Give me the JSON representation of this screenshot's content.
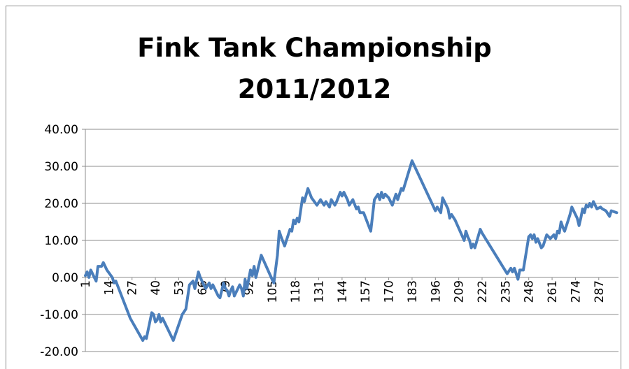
{
  "chart_data": {
    "type": "line",
    "title_lines": [
      "Fink Tank Championship",
      "2011/2012"
    ],
    "xlabel": "",
    "ylabel": "",
    "ylim": [
      -20,
      40
    ],
    "y_ticks": [
      -20,
      -10,
      0,
      10,
      20,
      30,
      40
    ],
    "y_tick_labels": [
      "-20.00",
      "-10.00",
      "0.00",
      "10.00",
      "20.00",
      "30.00",
      "40.00"
    ],
    "x_tick_labels": [
      "1",
      "14",
      "27",
      "40",
      "53",
      "66",
      "79",
      "92",
      "105",
      "118",
      "131",
      "144",
      "157",
      "170",
      "183",
      "196",
      "209",
      "222",
      "235",
      "248",
      "261",
      "274",
      "287"
    ],
    "xlim": [
      1,
      298
    ],
    "grid": true,
    "legend": "none",
    "line_color": "#4a7ebb",
    "points": [
      [
        1,
        0.5
      ],
      [
        2,
        1.5
      ],
      [
        3,
        0
      ],
      [
        4,
        2
      ],
      [
        6,
        0
      ],
      [
        7,
        -1
      ],
      [
        8,
        3
      ],
      [
        10,
        3
      ],
      [
        11,
        4
      ],
      [
        13,
        2
      ],
      [
        16,
        0
      ],
      [
        17,
        -1.5
      ],
      [
        18,
        -1
      ],
      [
        26,
        -11
      ],
      [
        33,
        -17
      ],
      [
        34,
        -16
      ],
      [
        35,
        -16.5
      ],
      [
        38,
        -9.5
      ],
      [
        39,
        -10
      ],
      [
        40,
        -12
      ],
      [
        41,
        -11.5
      ],
      [
        42,
        -10
      ],
      [
        43,
        -12
      ],
      [
        44,
        -11
      ],
      [
        50,
        -17
      ],
      [
        55,
        -10
      ],
      [
        57,
        -8.5
      ],
      [
        59,
        -2
      ],
      [
        61,
        -1
      ],
      [
        62,
        -3
      ],
      [
        64,
        1.5
      ],
      [
        65,
        0
      ],
      [
        67,
        -2
      ],
      [
        68,
        -3
      ],
      [
        70,
        -1.5
      ],
      [
        71,
        -3
      ],
      [
        72,
        -2
      ],
      [
        75,
        -5
      ],
      [
        76,
        -5.5
      ],
      [
        78,
        -1.5
      ],
      [
        79,
        -3
      ],
      [
        80,
        -3.5
      ],
      [
        81,
        -5
      ],
      [
        82,
        -3.5
      ],
      [
        83,
        -2.5
      ],
      [
        84,
        -5
      ],
      [
        87,
        -2
      ],
      [
        88,
        -3
      ],
      [
        89,
        -5
      ],
      [
        90,
        -0.5
      ],
      [
        91,
        -3
      ],
      [
        93,
        2
      ],
      [
        94,
        0.5
      ],
      [
        95,
        3
      ],
      [
        96,
        0
      ],
      [
        99,
        6
      ],
      [
        105,
        -0.5
      ],
      [
        106,
        -1.5
      ],
      [
        108,
        6
      ],
      [
        109,
        12.5
      ],
      [
        110,
        11
      ],
      [
        112,
        8.5
      ],
      [
        115,
        13
      ],
      [
        116,
        12.5
      ],
      [
        117,
        15.5
      ],
      [
        118,
        14.5
      ],
      [
        119,
        16
      ],
      [
        120,
        15
      ],
      [
        122,
        21.5
      ],
      [
        123,
        20.5
      ],
      [
        125,
        24
      ],
      [
        127,
        21.5
      ],
      [
        130,
        19.5
      ],
      [
        132,
        21
      ],
      [
        134,
        19.5
      ],
      [
        135,
        20.5
      ],
      [
        137,
        19
      ],
      [
        138,
        21
      ],
      [
        140,
        19.5
      ],
      [
        141,
        20.5
      ],
      [
        143,
        23
      ],
      [
        144,
        22
      ],
      [
        145,
        23
      ],
      [
        147,
        21
      ],
      [
        148,
        19.5
      ],
      [
        150,
        21
      ],
      [
        152,
        18.5
      ],
      [
        153,
        19
      ],
      [
        154,
        17.5
      ],
      [
        156,
        17.5
      ],
      [
        160,
        12.5
      ],
      [
        162,
        21
      ],
      [
        164,
        22.5
      ],
      [
        165,
        21
      ],
      [
        166,
        23
      ],
      [
        167,
        21.5
      ],
      [
        168,
        22.5
      ],
      [
        170,
        21.5
      ],
      [
        172,
        19.5
      ],
      [
        174,
        22.5
      ],
      [
        175,
        21
      ],
      [
        177,
        24
      ],
      [
        178,
        23.5
      ],
      [
        183,
        31.5
      ],
      [
        196,
        18
      ],
      [
        197,
        19
      ],
      [
        199,
        17.5
      ],
      [
        200,
        21.5
      ],
      [
        203,
        18.5
      ],
      [
        204,
        16
      ],
      [
        205,
        17
      ],
      [
        207,
        15.5
      ],
      [
        212,
        10
      ],
      [
        213,
        12.5
      ],
      [
        214,
        11
      ],
      [
        215,
        10
      ],
      [
        216,
        8
      ],
      [
        217,
        9
      ],
      [
        218,
        8
      ],
      [
        221,
        13
      ],
      [
        222,
        12
      ],
      [
        236,
        1
      ],
      [
        238,
        2.5
      ],
      [
        239,
        1.5
      ],
      [
        240,
        2.5
      ],
      [
        242,
        -0.5
      ],
      [
        243,
        2
      ],
      [
        245,
        2
      ],
      [
        248,
        11
      ],
      [
        249,
        11.5
      ],
      [
        250,
        10.5
      ],
      [
        251,
        11.5
      ],
      [
        252,
        9.5
      ],
      [
        253,
        10.5
      ],
      [
        255,
        8
      ],
      [
        256,
        8.5
      ],
      [
        258,
        11.5
      ],
      [
        260,
        10.5
      ],
      [
        262,
        11.5
      ],
      [
        263,
        10.5
      ],
      [
        264,
        12.5
      ],
      [
        265,
        12
      ],
      [
        266,
        15
      ],
      [
        267,
        13.5
      ],
      [
        268,
        12.5
      ],
      [
        270,
        15.5
      ],
      [
        271,
        17
      ],
      [
        272,
        19
      ],
      [
        275,
        16
      ],
      [
        276,
        14
      ],
      [
        277,
        16
      ],
      [
        278,
        18.5
      ],
      [
        279,
        17.5
      ],
      [
        280,
        19.5
      ],
      [
        281,
        19
      ],
      [
        282,
        20
      ],
      [
        283,
        19
      ],
      [
        284,
        20.5
      ],
      [
        286,
        18.5
      ],
      [
        288,
        19
      ],
      [
        289,
        18.5
      ],
      [
        291,
        18
      ],
      [
        293,
        16.5
      ],
      [
        294,
        18
      ],
      [
        297,
        17.5
      ]
    ]
  }
}
